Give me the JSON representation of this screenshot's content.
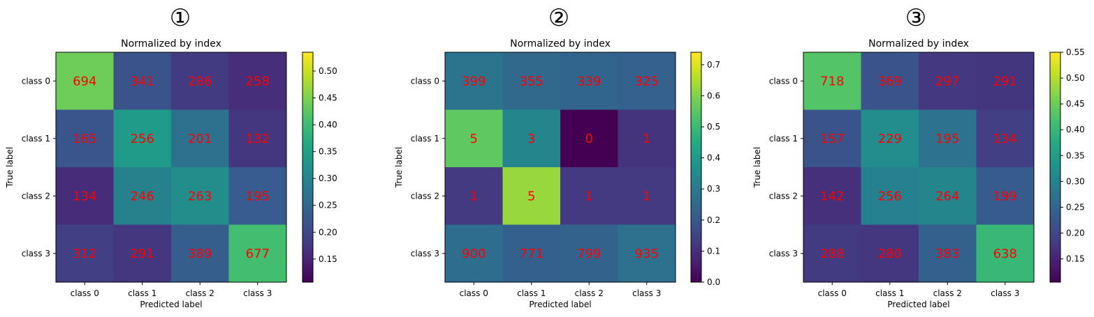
{
  "chart_data": [
    {
      "type": "heatmap",
      "panel_label": "①",
      "title": "Normalized by index",
      "xlabel": "Predicted label",
      "ylabel": "True label",
      "x_categories": [
        "class 0",
        "class 1",
        "class 2",
        "class 3"
      ],
      "y_categories": [
        "class 0",
        "class 1",
        "class 2",
        "class 3"
      ],
      "values": [
        [
          694,
          341,
          286,
          258
        ],
        [
          165,
          256,
          201,
          132
        ],
        [
          134,
          246,
          263,
          195
        ],
        [
          312,
          291,
          389,
          677
        ]
      ],
      "colorbar_range": [
        0.107,
        0.535
      ],
      "colorbar_ticks": [
        "0.15",
        "0.20",
        "0.25",
        "0.30",
        "0.35",
        "0.40",
        "0.45",
        "0.50"
      ],
      "colormap": "viridis",
      "text_color": "#ff0000"
    },
    {
      "type": "heatmap",
      "panel_label": "②",
      "title": "Normalized by index",
      "xlabel": "Predicted label",
      "ylabel": "True label",
      "x_categories": [
        "class 0",
        "class 1",
        "class 2",
        "class 3"
      ],
      "y_categories": [
        "class 0",
        "class 1",
        "class 2",
        "class 3"
      ],
      "values": [
        [
          399,
          355,
          339,
          325
        ],
        [
          5,
          3,
          0,
          1
        ],
        [
          1,
          5,
          1,
          1
        ],
        [
          900,
          771,
          799,
          935
        ]
      ],
      "colorbar_range": [
        0,
        0.74
      ],
      "colorbar_ticks": [
        "0.0",
        "0.1",
        "0.2",
        "0.3",
        "0.4",
        "0.5",
        "0.6",
        "0.7"
      ],
      "colormap": "viridis",
      "text_color": "#ff0000"
    },
    {
      "type": "heatmap",
      "panel_label": "③",
      "title": "Normalized by index",
      "xlabel": "Predicted label",
      "ylabel": "True label",
      "x_categories": [
        "class 0",
        "class 1",
        "class 2",
        "class 3"
      ],
      "y_categories": [
        "class 0",
        "class 1",
        "class 2",
        "class 3"
      ],
      "values": [
        [
          718,
          369,
          297,
          291
        ],
        [
          157,
          229,
          195,
          134
        ],
        [
          142,
          256,
          264,
          199
        ],
        [
          288,
          280,
          383,
          638
        ]
      ],
      "colorbar_range": [
        0.105,
        0.55
      ],
      "colorbar_ticks": [
        "0.15",
        "0.20",
        "0.25",
        "0.30",
        "0.35",
        "0.40",
        "0.45",
        "0.50",
        "0.55"
      ],
      "colormap": "viridis",
      "text_color": "#ff0000"
    }
  ]
}
